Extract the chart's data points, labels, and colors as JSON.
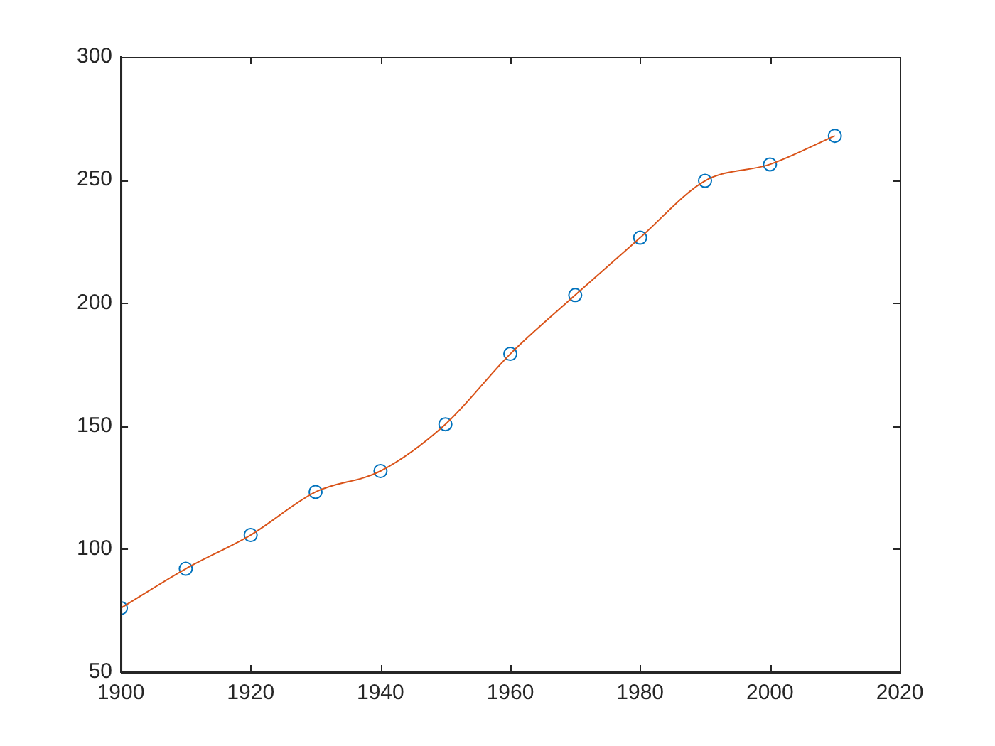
{
  "chart_data": {
    "type": "scatter",
    "x": [
      1900,
      1910,
      1920,
      1930,
      1940,
      1950,
      1960,
      1970,
      1980,
      1990,
      2000,
      2010
    ],
    "series": [
      {
        "type": "scatter",
        "color": "#0072bd",
        "marker": "circle",
        "values": [
          76.0,
          92.0,
          105.7,
          123.2,
          131.7,
          150.7,
          179.3,
          203.2,
          226.5,
          249.6,
          256.3,
          267.9
        ]
      },
      {
        "type": "line",
        "color": "#d95319",
        "marker": "none",
        "line_style": "solid",
        "x": [
          1900,
          1910,
          1920,
          1930,
          1940,
          1950,
          1960,
          1970,
          1980,
          1990,
          2000,
          2010
        ],
        "values": [
          76.0,
          92.0,
          105.7,
          123.2,
          131.7,
          150.7,
          179.3,
          203.2,
          226.5,
          249.6,
          256.3,
          267.9
        ]
      }
    ],
    "xlim": [
      1900,
      2020
    ],
    "xticks": [
      1900,
      1920,
      1940,
      1960,
      1980,
      2000,
      2020
    ],
    "ylim": [
      50,
      300
    ],
    "yticks": [
      50,
      100,
      150,
      200,
      250,
      300
    ],
    "grid": false,
    "legend": false
  }
}
